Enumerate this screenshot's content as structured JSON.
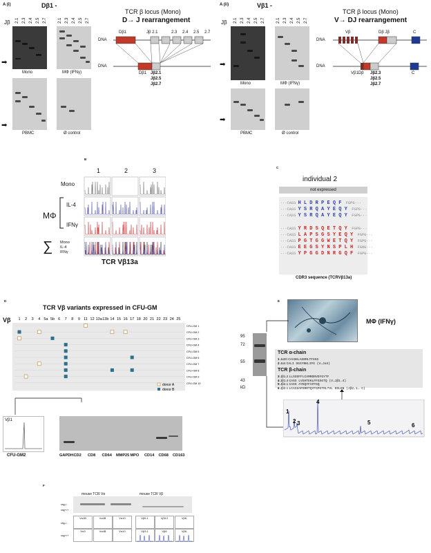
{
  "panel_a1": {
    "label": "A (i)",
    "title": "Dβ1 -",
    "jb_label": "Jβ",
    "lanes": [
      "2.1",
      "2.3",
      "2.4",
      "2.5",
      "2.7"
    ],
    "gel_labels": [
      "Mono",
      "MΦ (IFNγ)",
      "PBMC",
      "Ø control"
    ],
    "locus_title": "TCR β locus (Mono)",
    "rearr_title": "D→ J rearrangement",
    "dna": "DNA",
    "seg_d": "Dβ1",
    "seg_j": "Jβ 2.1",
    "seg_j_nums": [
      "2.3",
      "2.4",
      "2.5",
      "2.7"
    ],
    "bottom_d": "Dβ1",
    "bottom_j": [
      "Jβ2.1",
      "Jβ2.5",
      "Jβ2.7"
    ]
  },
  "panel_a2": {
    "label": "A (ii)",
    "title": "Vβ1 -",
    "jb_label": "Jβ",
    "lanes": [
      "2.1",
      "2.3",
      "2.4",
      "2.5",
      "2.7"
    ],
    "gel_labels": [
      "Mono",
      "MΦ (IFNγ)",
      "PBMC",
      "Ø control"
    ],
    "locus_title": "TCR β locus (Mono)",
    "rearr_title": "V→ DJ rearrangement",
    "dna": "DNA",
    "seg_v": "Vβ",
    "seg_dj": "Dβ Jβ",
    "seg_c": "C",
    "bottom_vdj": "Vβ1Dβ",
    "bottom_j": [
      "Jβ2.3",
      "Jβ2.5",
      "Jβ2.7"
    ],
    "bottom_c": "C"
  },
  "panel_b": {
    "label": "B",
    "cols": [
      "1",
      "2",
      "3"
    ],
    "rows": [
      "Mono",
      "IL-4",
      "IFNγ"
    ],
    "mphi": "MΦ",
    "sigma": "∑",
    "sigma_lines": [
      "Mono",
      "IL-4",
      "IFNγ"
    ],
    "caption": "TCR Vβ13a"
  },
  "panel_c": {
    "label": "C",
    "title": "individual 2",
    "banner": "not expressed",
    "blue_rows": [
      {
        "pre": "···CASS",
        "seq": "HLDRPEQF",
        "post": "FGPG···"
      },
      {
        "pre": "···CASS",
        "seq": "YSRQAYEQY",
        "post": "FGPG···"
      },
      {
        "pre": "···CASS",
        "seq": "YSRQAYEQY",
        "post": "FGPG···"
      }
    ],
    "red_rows": [
      {
        "pre": "···CASS",
        "seq": "YRDSQETQY",
        "post": "FGPG···"
      },
      {
        "pre": "···CASS",
        "seq": "LAPSGSYEQY",
        "post": "FGPG···"
      },
      {
        "pre": "···CASS",
        "seq": "PGTGGWETQY",
        "post": "FGPG···"
      },
      {
        "pre": "···CASS",
        "seq": "EEGSYNSPLH",
        "post": "FGNG···"
      },
      {
        "pre": "···CASS",
        "seq": "YPGGDNRGQF",
        "post": "FGPG···"
      }
    ],
    "caption": "CDR3 sequence (TCRVβ13a)"
  },
  "panel_d": {
    "label": "D",
    "title": "TCR Vβ variants expressed in CFU-GM",
    "vb": "Vβ",
    "cols": [
      "1",
      "2",
      "3",
      "4",
      "5a",
      "5b",
      "6",
      "7",
      "8",
      "9",
      "11",
      "12",
      "13a",
      "13b",
      "14",
      "15",
      "16",
      "17",
      "18",
      "20",
      "21",
      "22",
      "23",
      "24",
      "25"
    ],
    "rows": [
      "CFU-GM 1",
      "CFU-GM 2",
      "CFU-GM 3",
      "CFU-GM 4",
      "CFU-GM 5",
      "CFU-GM 6",
      "CFU-GM 7",
      "CFU-GM 8",
      "CFU-GM 9",
      "CFU-GM 10"
    ],
    "legend": [
      "donor A",
      "donor B"
    ],
    "colors": {
      "donor_a": "#c8a060",
      "donor_b": "#2e6f8c"
    },
    "marks": [
      {
        "row": 0,
        "col": "11",
        "donor": "A"
      },
      {
        "row": 1,
        "col": "1",
        "donor": "B"
      },
      {
        "row": 1,
        "col": "4",
        "donor": "A"
      },
      {
        "row": 1,
        "col": "14",
        "donor": "A"
      },
      {
        "row": 1,
        "col": "16",
        "donor": "A"
      },
      {
        "row": 2,
        "col": "1",
        "donor": "A"
      },
      {
        "row": 2,
        "col": "5b",
        "donor": "B"
      },
      {
        "row": 3,
        "col": "7",
        "donor": "B"
      },
      {
        "row": 4,
        "col": "7",
        "donor": "B"
      },
      {
        "row": 5,
        "col": "7",
        "donor": "B"
      },
      {
        "row": 5,
        "col": "17",
        "donor": "B"
      },
      {
        "row": 6,
        "col": "4",
        "donor": "A"
      },
      {
        "row": 6,
        "col": "7",
        "donor": "B"
      },
      {
        "row": 7,
        "col": "7",
        "donor": "B"
      },
      {
        "row": 7,
        "col": "14",
        "donor": "B"
      },
      {
        "row": 7,
        "col": "17",
        "donor": "B"
      },
      {
        "row": 8,
        "col": "2",
        "donor": "A"
      },
      {
        "row": 8,
        "col": "7",
        "donor": "B"
      }
    ],
    "inset_label": "Vβ1",
    "inset_caption": "CFU-GM2",
    "gel_lanes": [
      "GAPDH",
      "CD2",
      "CD8",
      "CD64",
      "MMP25",
      "MPO",
      "CD14",
      "CD68",
      "CD163"
    ]
  },
  "panel_e": {
    "label": "E",
    "photo_label": "MΦ (IFNγ)",
    "markers": [
      "95",
      "72",
      "55",
      "43"
    ],
    "kd": "kD",
    "alpha_title": "TCR α-chain",
    "alpha_rows": [
      {
        "n": "1",
        "j": "Jα20",
        "seq": "CAASKLAGNMLTFGGG"
      },
      {
        "n": "2",
        "j": "Jα4",
        "seq": "CALI SGGYNKLIFG (V→Jα4)"
      }
    ],
    "beta_title": "TCR β-chain",
    "beta_rows": [
      {
        "n": "3",
        "j": "Jβ1.2",
        "seq": "LLSSSFFLCAMRDRVDYGYTF"
      },
      {
        "n": "4",
        "j": "Jβ1.4",
        "seq": "CASS LVGHTEKLFFGSGTQ (V→Jβ1.4)"
      },
      {
        "n": "5",
        "j": "Jβ2.1",
        "seq": "CASS AYEQYFAFFGQ"
      },
      {
        "n": "6",
        "j": "Jβ2.1",
        "seq": "LCASSAPSRRTQYFGPGTRLTVL EDLKN (Jβ2.1→ C)"
      }
    ],
    "peaks": [
      "1",
      "2",
      "3",
      "4",
      "5",
      "6"
    ]
  },
  "panel_f": {
    "label": "F",
    "alpha_title": "mouse TCR Vα",
    "beta_title": "mouse TCR Vβ",
    "row_labels": [
      "rag-/-",
      "rag+/+",
      "rag-/-",
      "rag+/+"
    ],
    "alpha_cells": [
      "Vα1B",
      "Vα4B",
      "Vα10",
      "Vα3",
      "Vα4B",
      "Vα10"
    ],
    "beta_cells": [
      "Vβ5.1",
      "Vβ5.2",
      "Vβ6",
      "Vβ3.1",
      "Vβ6",
      "Vβ6"
    ]
  }
}
